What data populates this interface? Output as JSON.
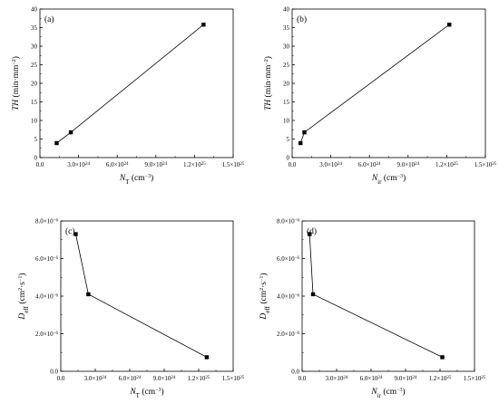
{
  "chart_data": [
    {
      "type": "line",
      "panel_label": "(a)",
      "xlabel": {
        "main": "N",
        "sub": "T",
        "unit": " (cm",
        "sup": "−3",
        "close": ")"
      },
      "ylabel": {
        "main": "TH",
        "unit": " (min·mm",
        "sup": "−2",
        "close": ")"
      },
      "xlim": [
        0,
        1.5e+25
      ],
      "ylim": [
        0,
        40
      ],
      "x_ticks": [
        0,
        3e+24,
        6e+24,
        9e+24,
        1.2e+25,
        1.5e+25
      ],
      "x_tick_labels": [
        {
          "m": "0.0"
        },
        {
          "m": "3.0×10",
          "e": "24"
        },
        {
          "m": "6.0×10",
          "e": "24"
        },
        {
          "m": "9.0×10",
          "e": "24"
        },
        {
          "m": "1.2×10",
          "e": "25"
        },
        {
          "m": "1.5×10",
          "e": "25"
        }
      ],
      "y_ticks": [
        0,
        5,
        10,
        15,
        20,
        25,
        30,
        35,
        40
      ],
      "y_tick_labels": [
        {
          "m": "0"
        },
        {
          "m": "5"
        },
        {
          "m": "10"
        },
        {
          "m": "15"
        },
        {
          "m": "20"
        },
        {
          "m": "25"
        },
        {
          "m": "30"
        },
        {
          "m": "35"
        },
        {
          "m": "40"
        }
      ],
      "series": [
        {
          "x": [
            1.3e+24,
            2.4e+24,
            1.27e+25
          ],
          "y": [
            3.9,
            6.8,
            35.8
          ]
        }
      ]
    },
    {
      "type": "line",
      "panel_label": "(b)",
      "xlabel": {
        "main": "N",
        "sub": "ir",
        "unit": " (cm",
        "sup": "−3",
        "close": ")"
      },
      "ylabel": {
        "main": "TH",
        "unit": " (min·mm",
        "sup": "−2",
        "close": ")"
      },
      "xlim": [
        0,
        1.5e+25
      ],
      "ylim": [
        0,
        40
      ],
      "x_ticks": [
        0,
        3e+24,
        6e+24,
        9e+24,
        1.2e+25,
        1.5e+25
      ],
      "x_tick_labels": [
        {
          "m": "0.0"
        },
        {
          "m": "3.0×10",
          "e": "24"
        },
        {
          "m": "6.0×10",
          "e": "24"
        },
        {
          "m": "9.0×10",
          "e": "24"
        },
        {
          "m": "1.2×10",
          "e": "25"
        },
        {
          "m": "1.5×10",
          "e": "25"
        }
      ],
      "y_ticks": [
        0,
        5,
        10,
        15,
        20,
        25,
        30,
        35,
        40
      ],
      "y_tick_labels": [
        {
          "m": "0"
        },
        {
          "m": "5"
        },
        {
          "m": "10"
        },
        {
          "m": "15"
        },
        {
          "m": "20"
        },
        {
          "m": "25"
        },
        {
          "m": "30"
        },
        {
          "m": "35"
        },
        {
          "m": "40"
        }
      ],
      "series": [
        {
          "x": [
            6.5e+23,
            9.5e+23,
            1.22e+25
          ],
          "y": [
            3.9,
            6.8,
            35.8
          ]
        }
      ]
    },
    {
      "type": "line",
      "panel_label": "(c)",
      "xlabel": {
        "main": "N",
        "sub": "T",
        "unit": " (cm",
        "sup": "−3",
        "close": ")"
      },
      "ylabel": {
        "main": "D",
        "sub": "eff",
        "unit": " (cm",
        "sup": "2",
        "unit2": "·s",
        "sup2": "−1",
        "close": ")"
      },
      "xlim": [
        0,
        1.5e+25
      ],
      "ylim": [
        0,
        8e-06
      ],
      "x_ticks": [
        0,
        3e+24,
        6e+24,
        9e+24,
        1.2e+25,
        1.5e+25
      ],
      "x_tick_labels": [
        {
          "m": "0.0"
        },
        {
          "m": "3.0×10",
          "e": "24"
        },
        {
          "m": "6.0×10",
          "e": "24"
        },
        {
          "m": "9.0×10",
          "e": "24"
        },
        {
          "m": "1.2×10",
          "e": "25"
        },
        {
          "m": "1.5×10",
          "e": "25"
        }
      ],
      "y_ticks": [
        0,
        2e-06,
        4e-06,
        6e-06,
        8e-06
      ],
      "y_tick_labels": [
        {
          "m": "0.0"
        },
        {
          "m": "2.0×10",
          "e": "−6"
        },
        {
          "m": "4.0×10",
          "e": "−6"
        },
        {
          "m": "6.0×10",
          "e": "−6"
        },
        {
          "m": "8.0×10",
          "e": "−6"
        }
      ],
      "series": [
        {
          "x": [
            1.3e+24,
            2.4e+24,
            1.27e+25
          ],
          "y": [
            7.3e-06,
            4.1e-06,
            7.5e-07
          ]
        }
      ]
    },
    {
      "type": "line",
      "panel_label": "(d)",
      "xlabel": {
        "main": "N",
        "sub": "ir",
        "unit": " (cm",
        "sup": "−3",
        "close": ")"
      },
      "ylabel": {
        "main": "D",
        "sub": "eff",
        "unit": " (cm",
        "sup": "2",
        "unit2": "·s",
        "sup2": "−1",
        "close": ")"
      },
      "xlim": [
        0,
        1.5e+25
      ],
      "ylim": [
        0,
        8e-06
      ],
      "x_ticks": [
        0,
        3e+24,
        6e+24,
        9e+24,
        1.2e+25,
        1.5e+25
      ],
      "x_tick_labels": [
        {
          "m": "0.0"
        },
        {
          "m": "3.0×10",
          "e": "24"
        },
        {
          "m": "6.0×10",
          "e": "24"
        },
        {
          "m": "9.0×10",
          "e": "24"
        },
        {
          "m": "1.2×10",
          "e": "25"
        },
        {
          "m": "1.5×10",
          "e": "25"
        }
      ],
      "y_ticks": [
        0,
        2e-06,
        4e-06,
        6e-06,
        8e-06
      ],
      "y_tick_labels": [
        {
          "m": "0.0"
        },
        {
          "m": "2.0×10",
          "e": "−6"
        },
        {
          "m": "4.0×10",
          "e": "−6"
        },
        {
          "m": "6.0×10",
          "e": "−6"
        },
        {
          "m": "8.0×10",
          "e": "−6"
        }
      ],
      "series": [
        {
          "x": [
            6.5e+23,
            9.5e+23,
            1.22e+25
          ],
          "y": [
            7.3e-06,
            4.1e-06,
            7.5e-07
          ]
        }
      ]
    }
  ]
}
